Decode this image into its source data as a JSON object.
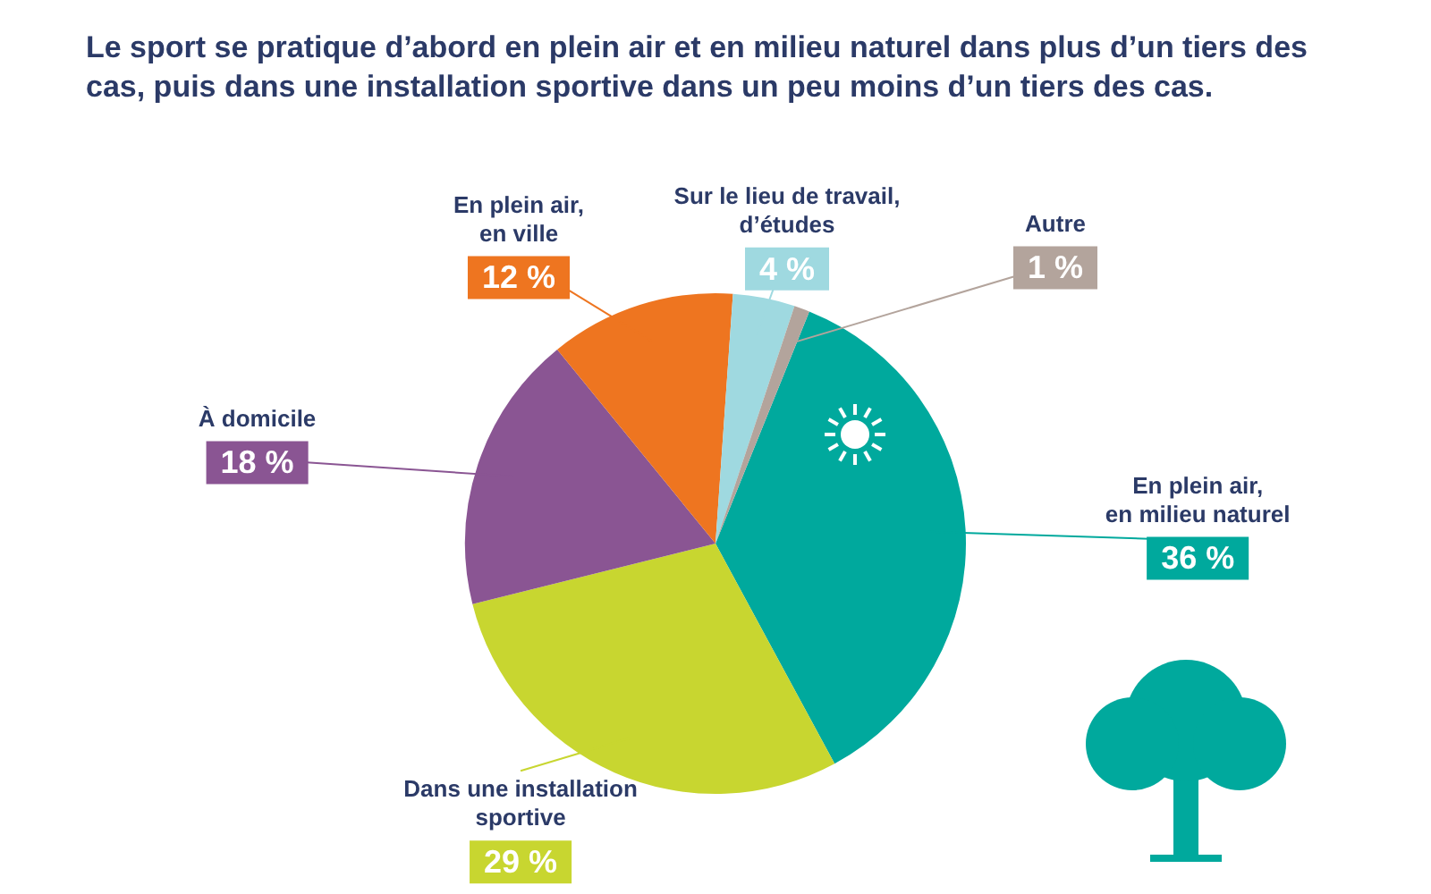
{
  "chart_data": {
    "type": "pie",
    "title": "Le sport se pratique d’abord en plein air et en milieu naturel dans plus d’un tiers des cas, puis dans une installation sportive dans un peu moins d’un tiers des cas.",
    "categories": [
      "En plein air, en milieu naturel",
      "Dans une installation sportive",
      "À domicile",
      "En plein air, en ville",
      "Sur le lieu de travail, d’études",
      "Autre"
    ],
    "values": [
      36,
      29,
      18,
      12,
      4,
      1
    ],
    "value_labels": [
      "36 %",
      "29 %",
      "18 %",
      "12 %",
      "4 %",
      "1 %"
    ],
    "colors": [
      "#00a99d",
      "#c8d630",
      "#8a5593",
      "#ee7520",
      "#9fd9e0",
      "#b3a49c"
    ],
    "legend": false
  }
}
